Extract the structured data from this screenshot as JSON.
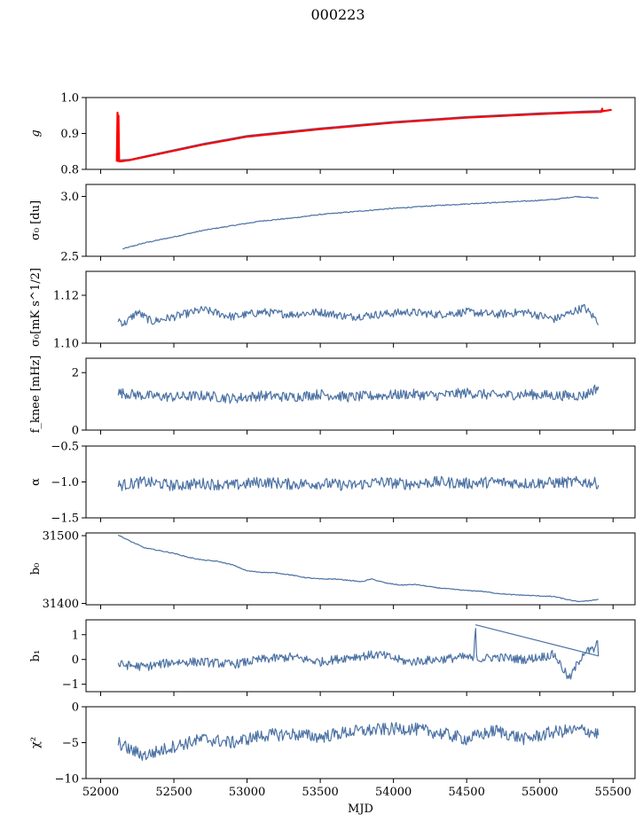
{
  "figure": {
    "title": "000223",
    "series_color": "#4c72a4",
    "highlight_color": "#ff0000"
  },
  "chart_data": [
    {
      "type": "line",
      "key": "g",
      "ylabel": "g",
      "ylabel_style": "italic",
      "ylim": [
        0.8,
        1.0
      ],
      "yticks": [
        0.8,
        0.9,
        1.0
      ],
      "ytick_labels": [
        "0.8",
        "0.9",
        "1.0"
      ],
      "xlim": [
        51900,
        55650
      ],
      "series": [
        {
          "color": "#4c72a4",
          "x": [
            52110,
            52200,
            52400,
            52700,
            53000,
            53500,
            54000,
            54500,
            55000,
            55300,
            55490
          ],
          "y": [
            0.826,
            0.828,
            0.846,
            0.872,
            0.894,
            0.915,
            0.933,
            0.947,
            0.957,
            0.962,
            0.965
          ]
        },
        {
          "color": "#ff0000",
          "x": [
            52110,
            52115,
            52118,
            52122,
            52126,
            52130,
            52200,
            52400,
            52700,
            53000,
            53500,
            54000,
            54500,
            55000,
            55300,
            55420,
            55425,
            55430,
            55490
          ],
          "y": [
            0.822,
            0.958,
            0.823,
            0.95,
            0.823,
            0.822,
            0.826,
            0.843,
            0.869,
            0.891,
            0.912,
            0.93,
            0.944,
            0.954,
            0.959,
            0.96,
            0.969,
            0.962,
            0.966
          ]
        }
      ]
    },
    {
      "type": "line",
      "key": "sigma0_du",
      "ylabel": "σ₀ [du]",
      "ylim": [
        2.5,
        3.1
      ],
      "yticks": [
        2.5,
        3.0
      ],
      "ytick_labels": [
        "2.5",
        "3.0"
      ],
      "series": [
        {
          "color": "#4c72a4",
          "x": [
            52150,
            52300,
            52500,
            52700,
            52900,
            53100,
            53300,
            53500,
            53800,
            54000,
            54300,
            54600,
            54900,
            55100,
            55250,
            55400
          ],
          "y": [
            2.561,
            2.612,
            2.662,
            2.716,
            2.756,
            2.795,
            2.818,
            2.849,
            2.88,
            2.9,
            2.924,
            2.944,
            2.96,
            2.975,
            2.999,
            2.985
          ]
        }
      ]
    },
    {
      "type": "line",
      "key": "sigma0_mK",
      "ylabel": "σ₀[mK s^1/2]",
      "ylim": [
        1.1,
        1.13
      ],
      "yticks": [
        1.1,
        1.12
      ],
      "ytick_labels": [
        "1.10",
        "1.12"
      ],
      "series": [
        {
          "color": "#4c72a4",
          "x": [
            52120,
            52160,
            52250,
            52350,
            52500,
            52700,
            52900,
            53100,
            53300,
            53500,
            53700,
            53900,
            54100,
            54300,
            54500,
            54700,
            54900,
            55100,
            55300,
            55400
          ],
          "y": [
            1.11,
            1.108,
            1.113,
            1.109,
            1.111,
            1.114,
            1.111,
            1.113,
            1.112,
            1.113,
            1.111,
            1.112,
            1.113,
            1.112,
            1.113,
            1.112,
            1.113,
            1.11,
            1.115,
            1.109
          ]
        }
      ]
    },
    {
      "type": "line",
      "key": "fknee",
      "ylabel": "f_knee [mHz]",
      "ylim": [
        0,
        2.5
      ],
      "yticks": [
        0,
        2
      ],
      "ytick_labels": [
        "0",
        "2"
      ],
      "series": [
        {
          "color": "#4c72a4",
          "x": [
            52120,
            52300,
            52500,
            52700,
            52900,
            53100,
            53300,
            53500,
            53700,
            53900,
            54100,
            54300,
            54500,
            54700,
            54900,
            55100,
            55300,
            55400
          ],
          "y": [
            1.3,
            1.2,
            1.15,
            1.2,
            1.1,
            1.2,
            1.15,
            1.25,
            1.15,
            1.2,
            1.25,
            1.2,
            1.3,
            1.2,
            1.25,
            1.2,
            1.2,
            1.5
          ]
        }
      ]
    },
    {
      "type": "line",
      "key": "alpha",
      "ylabel": "α",
      "ylim": [
        -1.5,
        -0.5
      ],
      "yticks": [
        -1.5,
        -1.0,
        -0.5
      ],
      "ytick_labels": [
        "−1.5",
        "−1.0",
        "−0.5"
      ],
      "series": [
        {
          "color": "#4c72a4",
          "x": [
            52120,
            52300,
            52500,
            52700,
            52900,
            53100,
            53300,
            53500,
            53700,
            53900,
            54100,
            54300,
            54500,
            54700,
            54900,
            55100,
            55300,
            55400
          ],
          "y": [
            -1.05,
            -1.0,
            -1.05,
            -1.02,
            -1.05,
            -1.0,
            -1.03,
            -1.02,
            -1.05,
            -1.0,
            -1.03,
            -1.0,
            -1.02,
            -1.0,
            -1.02,
            -1.01,
            -1.0,
            -1.02
          ]
        }
      ]
    },
    {
      "type": "line",
      "key": "b0",
      "ylabel": "b₀",
      "ylim": [
        31398,
        31504
      ],
      "yticks": [
        31400,
        31500
      ],
      "ytick_labels": [
        "31400",
        "31500"
      ],
      "series": [
        {
          "color": "#4c72a4",
          "x": [
            52120,
            52200,
            52300,
            52400,
            52500,
            52600,
            52700,
            52800,
            52900,
            53000,
            53100,
            53200,
            53300,
            53400,
            53500,
            53600,
            53700,
            53780,
            53850,
            53950,
            54050,
            54150,
            54300,
            54400,
            54500,
            54600,
            54700,
            54800,
            54900,
            55000,
            55100,
            55200,
            55250,
            55300,
            55400
          ],
          "y": [
            31501,
            31492,
            31482,
            31478,
            31474,
            31468,
            31464,
            31462,
            31457,
            31448,
            31446,
            31445,
            31442,
            31438,
            31436,
            31436,
            31434,
            31432,
            31436,
            31430,
            31427,
            31428,
            31423,
            31421,
            31419,
            31418,
            31415,
            31413,
            31412,
            31411,
            31410,
            31405,
            31403,
            31403,
            31406
          ]
        }
      ]
    },
    {
      "type": "line",
      "key": "b1",
      "ylabel": "b₁",
      "ylim": [
        -1.3,
        1.6
      ],
      "yticks": [
        -1,
        0,
        1
      ],
      "ytick_labels": [
        "−1",
        "0",
        "1"
      ],
      "series": [
        {
          "color": "#4c72a4",
          "x": [
            52120,
            52300,
            52500,
            52700,
            52900,
            53100,
            53300,
            53500,
            53700,
            53900,
            54100,
            54300,
            54500,
            54550,
            54560,
            54570,
            54700,
            54900,
            55100,
            55200,
            55300,
            55380,
            55390,
            55400
          ],
          "y": [
            -0.2,
            -0.3,
            -0.1,
            -0.1,
            -0.2,
            0.0,
            0.1,
            -0.1,
            0.1,
            0.2,
            -0.1,
            0.0,
            0.1,
            0.0,
            1.4,
            0.0,
            0.1,
            0.0,
            0.2,
            -0.8,
            0.3,
            0.4,
            1.0,
            0.0
          ]
        }
      ]
    },
    {
      "type": "line",
      "key": "chi2",
      "ylabel": "χ²",
      "xlabel": "MJD",
      "ylim": [
        -10,
        0
      ],
      "yticks": [
        -10,
        -5,
        0
      ],
      "ytick_labels": [
        "−10",
        "−5",
        "0"
      ],
      "xlim": [
        51900,
        55650
      ],
      "xticks": [
        52000,
        52500,
        53000,
        53500,
        54000,
        54500,
        55000,
        55500
      ],
      "xtick_labels": [
        "52000",
        "52500",
        "53000",
        "53500",
        "54000",
        "54500",
        "55000",
        "55500"
      ],
      "series": [
        {
          "color": "#4c72a4",
          "x": [
            52120,
            52200,
            52300,
            52500,
            52700,
            52900,
            53100,
            53300,
            53500,
            53700,
            53900,
            54100,
            54300,
            54500,
            54700,
            54900,
            55100,
            55300,
            55400
          ],
          "y": [
            -5.0,
            -6.0,
            -6.8,
            -5.5,
            -4.5,
            -5.0,
            -4.0,
            -3.8,
            -4.2,
            -3.5,
            -3.2,
            -3.0,
            -3.6,
            -4.5,
            -3.3,
            -4.5,
            -3.5,
            -3.2,
            -3.8
          ]
        }
      ]
    }
  ]
}
